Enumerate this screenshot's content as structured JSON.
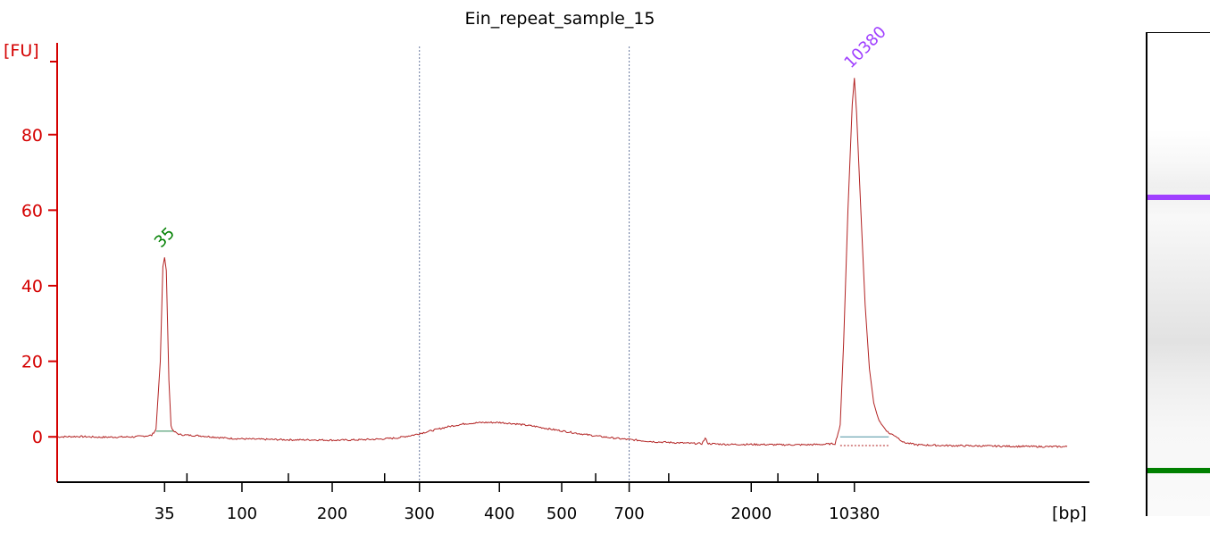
{
  "chart_data": {
    "type": "line",
    "title": "Ein_repeat_sample_15",
    "ylabel": "[FU]",
    "xlabel": "[bp]",
    "ylim": [
      -12,
      105
    ],
    "yticks": [
      0,
      20,
      40,
      60,
      80
    ],
    "xtick_labels": [
      "35",
      "100",
      "200",
      "300",
      "400",
      "500",
      "700",
      "2000",
      "10380"
    ],
    "peaks": [
      {
        "label": "35",
        "bp": 35,
        "fu": 47.5,
        "color": "#008000"
      },
      {
        "label": "10380",
        "bp": 10380,
        "fu": 95,
        "color": "#a040ff"
      }
    ],
    "smear_region_bp": [
      300,
      700
    ],
    "series": [
      {
        "color": "#b22222",
        "points": [
          [
            0,
            0
          ],
          [
            5,
            0.1
          ],
          [
            10,
            -0.1
          ],
          [
            18,
            0
          ],
          [
            20,
            0.2
          ],
          [
            22,
            0.4
          ],
          [
            23,
            2
          ],
          [
            24,
            20
          ],
          [
            24.6,
            45
          ],
          [
            25,
            47.5
          ],
          [
            25.4,
            44
          ],
          [
            26,
            15
          ],
          [
            26.5,
            3
          ],
          [
            27,
            1.5
          ],
          [
            28.5,
            0.6
          ],
          [
            31,
            0.4
          ],
          [
            33,
            0.3
          ],
          [
            36,
            0
          ],
          [
            40,
            -0.4
          ],
          [
            45,
            -0.6
          ],
          [
            50,
            -0.7
          ],
          [
            55,
            -0.8
          ],
          [
            60,
            -0.8
          ],
          [
            65,
            -0.9
          ],
          [
            70,
            -0.8
          ],
          [
            75,
            -0.6
          ],
          [
            79,
            -0.3
          ],
          [
            83,
            0.5
          ],
          [
            87,
            1.6
          ],
          [
            91,
            2.7
          ],
          [
            95,
            3.5
          ],
          [
            99,
            3.8
          ],
          [
            103,
            3.8
          ],
          [
            107,
            3.4
          ],
          [
            111,
            2.8
          ],
          [
            115,
            2.0
          ],
          [
            119,
            1.3
          ],
          [
            123,
            0.6
          ],
          [
            127,
            0
          ],
          [
            131,
            -0.5
          ],
          [
            135,
            -0.9
          ],
          [
            139,
            -1.3
          ],
          [
            143,
            -1.5
          ],
          [
            147,
            -1.7
          ],
          [
            150,
            -1.8
          ],
          [
            150.8,
            -0.4
          ],
          [
            151.5,
            -1.8
          ],
          [
            156,
            -2.0
          ],
          [
            162,
            -2.0
          ],
          [
            168,
            -2.1
          ],
          [
            174,
            -2.1
          ],
          [
            178,
            -2.0
          ],
          [
            181,
            -1.8
          ],
          [
            182.2,
            3
          ],
          [
            183,
            25
          ],
          [
            184,
            60
          ],
          [
            185,
            88
          ],
          [
            185.5,
            95
          ],
          [
            186,
            86
          ],
          [
            187,
            60
          ],
          [
            188,
            35
          ],
          [
            189,
            18
          ],
          [
            190,
            9
          ],
          [
            191,
            5
          ],
          [
            192,
            3
          ],
          [
            193.5,
            1
          ],
          [
            195,
            0.3
          ],
          [
            197,
            -1.5
          ],
          [
            200,
            -2.1
          ],
          [
            206,
            -2.3
          ],
          [
            214,
            -2.4
          ],
          [
            222,
            -2.5
          ],
          [
            230,
            -2.6
          ],
          [
            235,
            -2.6
          ]
        ]
      }
    ]
  },
  "gel": {
    "upper_band_color": "#a040ff",
    "lower_band_color": "#008000"
  }
}
